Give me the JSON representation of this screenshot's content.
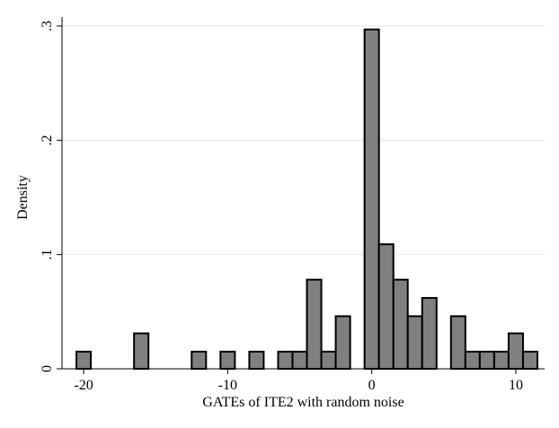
{
  "chart_data": {
    "type": "bar",
    "subtype": "histogram",
    "xlabel": "GATEs of ITE2 with random noise",
    "ylabel": "Density",
    "xlim": [
      -21.5,
      12
    ],
    "ylim": [
      0,
      0.3
    ],
    "grid": true,
    "bin_width": 1,
    "x_ticks": [
      -20,
      -10,
      0,
      10
    ],
    "x_tick_labels": [
      "-20",
      "-10",
      "0",
      "10"
    ],
    "y_ticks": [
      0,
      0.1,
      0.2,
      0.3
    ],
    "y_tick_labels": [
      "0",
      ".1",
      ".2",
      ".3"
    ],
    "bins": [
      {
        "x": -20,
        "density": 0.015
      },
      {
        "x": -16,
        "density": 0.031
      },
      {
        "x": -12,
        "density": 0.015
      },
      {
        "x": -10,
        "density": 0.015
      },
      {
        "x": -8,
        "density": 0.015
      },
      {
        "x": -6,
        "density": 0.015
      },
      {
        "x": -5,
        "density": 0.015
      },
      {
        "x": -4,
        "density": 0.078
      },
      {
        "x": -3,
        "density": 0.015
      },
      {
        "x": -2,
        "density": 0.046
      },
      {
        "x": 0,
        "density": 0.297
      },
      {
        "x": 1,
        "density": 0.109
      },
      {
        "x": 2,
        "density": 0.078
      },
      {
        "x": 3,
        "density": 0.046
      },
      {
        "x": 4,
        "density": 0.062
      },
      {
        "x": 6,
        "density": 0.046
      },
      {
        "x": 7,
        "density": 0.015
      },
      {
        "x": 8,
        "density": 0.015
      },
      {
        "x": 9,
        "density": 0.015
      },
      {
        "x": 10,
        "density": 0.031
      },
      {
        "x": 11,
        "density": 0.015
      }
    ],
    "colors": {
      "bar_fill": "#808080",
      "bar_stroke": "#000000",
      "grid": "#e6e6e6",
      "axis": "#000000"
    }
  }
}
